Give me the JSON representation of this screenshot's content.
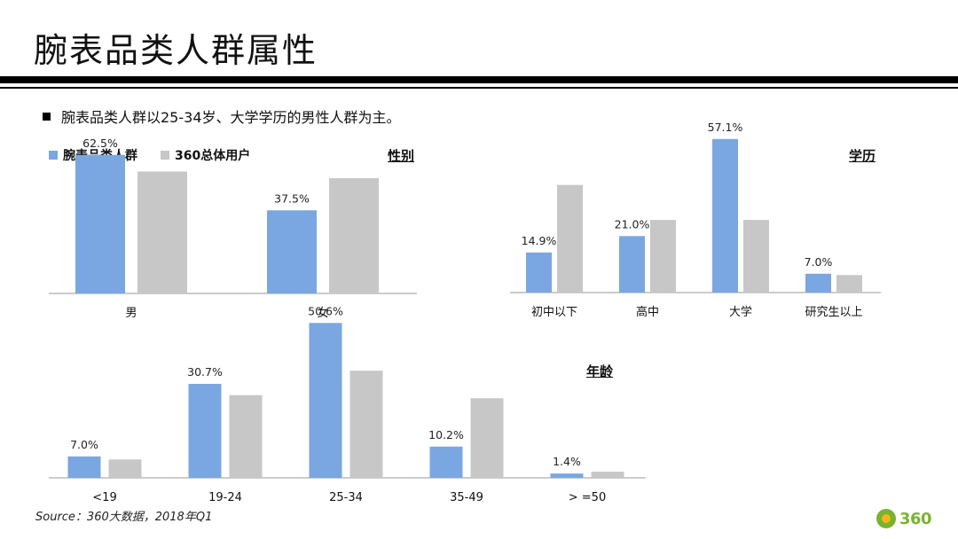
{
  "page": {
    "title": "腕表品类人群属性",
    "bullet": "腕表品类人群以25-34岁、大学学历的男性人群为主。",
    "source": "Source：360大数据，2018年Q1",
    "logo_text": "360"
  },
  "legend": {
    "items": [
      {
        "name": "腕表品类人群",
        "color": "#7aa7e1"
      },
      {
        "name": "360总体用户",
        "color": "#c7c7c7"
      }
    ]
  },
  "chart_data": [
    {
      "type": "bar",
      "title": "性别",
      "categories": [
        "男",
        "女"
      ],
      "series": [
        {
          "name": "腕表品类人群",
          "values": [
            62.5,
            37.5
          ],
          "labels": [
            "62.5%",
            "37.5%"
          ]
        },
        {
          "name": "360总体用户",
          "values": [
            55,
            52
          ]
        }
      ],
      "ylim": [
        0,
        70
      ]
    },
    {
      "type": "bar",
      "title": "学历",
      "categories": [
        "初中以下",
        "高中",
        "大学",
        "研究生以上"
      ],
      "series": [
        {
          "name": "腕表品类人群",
          "values": [
            14.9,
            21.0,
            57.1,
            7.0
          ],
          "labels": [
            "14.9%",
            "21.0%",
            "57.1%",
            "7.0%"
          ]
        },
        {
          "name": "360总体用户",
          "values": [
            40,
            27,
            27,
            6.5
          ]
        }
      ],
      "ylim": [
        0,
        60
      ]
    },
    {
      "type": "bar",
      "title": "年龄",
      "categories": [
        "<19",
        "19-24",
        "25-34",
        "35-49",
        "> =50"
      ],
      "series": [
        {
          "name": "腕表品类人群",
          "values": [
            7.0,
            30.7,
            50.6,
            10.2,
            1.4
          ],
          "labels": [
            "7.0%",
            "30.7%",
            "50.6%",
            "10.2%",
            "1.4%"
          ]
        },
        {
          "name": "360总体用户",
          "values": [
            6,
            27,
            35,
            26,
            2
          ]
        }
      ],
      "ylim": [
        0,
        53
      ]
    }
  ]
}
